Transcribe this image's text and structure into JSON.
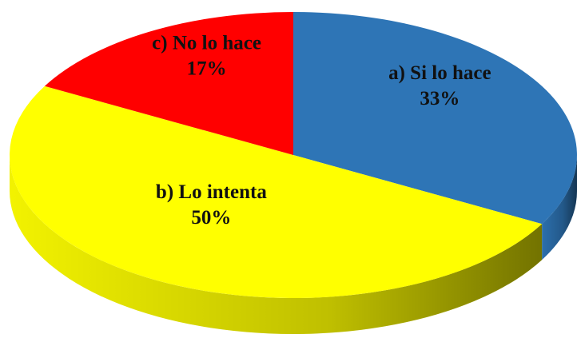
{
  "chart_data": {
    "type": "pie",
    "categories": [
      "a) Si lo hace",
      "b) Lo intenta",
      "c) No lo hace"
    ],
    "values": [
      33,
      50,
      17
    ],
    "value_labels": [
      "33%",
      "50%",
      "17%"
    ],
    "colors": [
      "#2e75b6",
      "#ffff00",
      "#ff0000"
    ]
  }
}
